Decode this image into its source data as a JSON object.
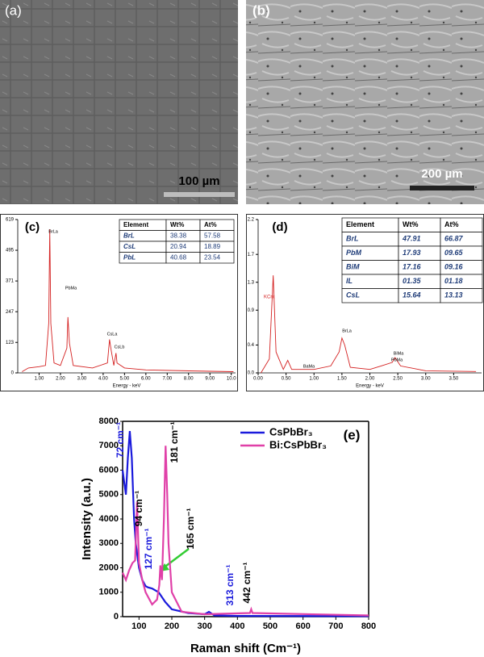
{
  "images": [
    {
      "label": "(a)",
      "scale": "100 µm"
    },
    {
      "label": "(b)",
      "scale": "200 µm"
    }
  ],
  "chart_data": [
    {
      "type": "spectrum",
      "label": "(c)",
      "xlabel": "Energy - keV",
      "color": "#d42020",
      "xlim": [
        0,
        10.2
      ],
      "ylim": [
        0,
        619
      ],
      "xticks": [
        {
          "value": 1,
          "label": "1.00"
        },
        {
          "value": 2,
          "label": "2.00"
        },
        {
          "value": 3,
          "label": "3.00"
        },
        {
          "value": 4,
          "label": "4.00"
        },
        {
          "value": 5,
          "label": "5.00"
        },
        {
          "value": 6,
          "label": "6.00"
        },
        {
          "value": 7,
          "label": "7.00"
        },
        {
          "value": 8,
          "label": "8.00"
        },
        {
          "value": 9,
          "label": "9.00"
        },
        {
          "value": 10,
          "label": "10.0"
        }
      ],
      "yticks": [
        0,
        123,
        247,
        371,
        495,
        619
      ],
      "x": [
        0.2,
        0.5,
        1,
        1.3,
        1.45,
        1.5,
        1.55,
        1.7,
        2,
        2.3,
        2.35,
        2.42,
        2.6,
        3.5,
        4.2,
        4.3,
        4.38,
        4.5,
        4.6,
        4.65,
        5,
        6,
        8,
        10.1
      ],
      "values": [
        5,
        20,
        25,
        30,
        200,
        580,
        200,
        40,
        30,
        100,
        225,
        120,
        30,
        20,
        40,
        135,
        90,
        30,
        80,
        40,
        20,
        12,
        8,
        5
      ],
      "annotations": [
        "BrLa",
        "PbMa",
        "CsLa",
        "CsLb"
      ],
      "table": {
        "header": [
          "Element",
          "Wt%",
          "At%"
        ],
        "rows": [
          [
            "BrL",
            "38.38",
            "57.58"
          ],
          [
            "CsL",
            "20.94",
            "18.89"
          ],
          [
            "PbL",
            "40.68",
            "23.54"
          ]
        ]
      }
    },
    {
      "type": "spectrum",
      "label": "(d)",
      "xlabel": "Energy - keV",
      "ylabel": "KCnt",
      "color": "#d42020",
      "xlim": [
        0,
        4
      ],
      "ylim": [
        0,
        2.2
      ],
      "xticks": [
        {
          "value": 0,
          "label": "0.00"
        },
        {
          "value": 0.5,
          "label": "0.50"
        },
        {
          "value": 1,
          "label": "1.00"
        },
        {
          "value": 1.5,
          "label": "1.50"
        },
        {
          "value": 2,
          "label": "2.00"
        },
        {
          "value": 2.5,
          "label": "2.50"
        },
        {
          "value": 3,
          "label": "3.00"
        },
        {
          "value": 3.5,
          "label": "3.50"
        }
      ],
      "yticks": [
        {
          "value": 0,
          "label": "0.0"
        },
        0.4,
        0.9,
        1.3,
        1.7,
        2.2
      ],
      "x": [
        0.05,
        0.2,
        0.27,
        0.32,
        0.45,
        0.53,
        0.6,
        1,
        1.3,
        1.45,
        1.5,
        1.55,
        1.65,
        2,
        2.2,
        2.4,
        2.45,
        2.55,
        3,
        3.9
      ],
      "values": [
        0,
        0.2,
        1.4,
        0.3,
        0.05,
        0.18,
        0.05,
        0.05,
        0.1,
        0.3,
        0.5,
        0.4,
        0.08,
        0.05,
        0.1,
        0.15,
        0.22,
        0.1,
        0.03,
        0.02
      ],
      "annotations": [
        "BaMa",
        "BrLa",
        "BiMa",
        "PbMa"
      ],
      "table": {
        "header": [
          "Element",
          "Wt%",
          "At%"
        ],
        "rows": [
          [
            "BrL",
            "47.91",
            "66.87"
          ],
          [
            "PbM",
            "17.93",
            "09.65"
          ],
          [
            "BiM",
            "17.16",
            "09.16"
          ],
          [
            "IL",
            "01.35",
            "01.18"
          ],
          [
            "CsL",
            "15.64",
            "13.13"
          ]
        ]
      }
    },
    {
      "type": "line",
      "label": "(e)",
      "xlabel": "Raman shift (Cm⁻¹)",
      "ylabel": "Intensity (a.u.)",
      "xlim": [
        50,
        800
      ],
      "ylim": [
        0,
        8000
      ],
      "xticks": [
        100,
        200,
        300,
        400,
        500,
        600,
        700,
        800
      ],
      "yticks": [
        0,
        1000,
        2000,
        3000,
        4000,
        5000,
        6000,
        7000,
        8000
      ],
      "series": [
        {
          "name": "CsPbBr₃",
          "color": "#1a1adc",
          "x": [
            50,
            55,
            60,
            66,
            72,
            78,
            85,
            90,
            100,
            110,
            120,
            127,
            140,
            160,
            180,
            200,
            250,
            300,
            313,
            330,
            400,
            800
          ],
          "values": [
            6000,
            5500,
            5000,
            6500,
            7600,
            6500,
            4000,
            3000,
            2000,
            1500,
            1250,
            1200,
            1150,
            1000,
            600,
            300,
            150,
            100,
            200,
            50,
            30,
            20
          ]
        },
        {
          "name": "Bi:CsPbBr₃",
          "color": "#e040a8",
          "x": [
            50,
            60,
            70,
            80,
            88,
            94,
            100,
            110,
            120,
            140,
            155,
            162,
            165,
            170,
            176,
            181,
            186,
            190,
            200,
            230,
            300,
            438,
            442,
            446,
            800
          ],
          "values": [
            1800,
            1500,
            1900,
            2200,
            2300,
            4700,
            2200,
            1500,
            1000,
            500,
            700,
            1300,
            2100,
            1500,
            4000,
            7000,
            5000,
            3000,
            1000,
            200,
            100,
            150,
            300,
            150,
            50
          ]
        }
      ],
      "annotations": [
        "72 cm⁻¹",
        "94 cm⁻¹",
        "127 cm⁻¹",
        "181 cm⁻¹",
        "165 cm⁻¹",
        "313 cm⁻¹",
        "442 cm⁻¹"
      ]
    }
  ]
}
